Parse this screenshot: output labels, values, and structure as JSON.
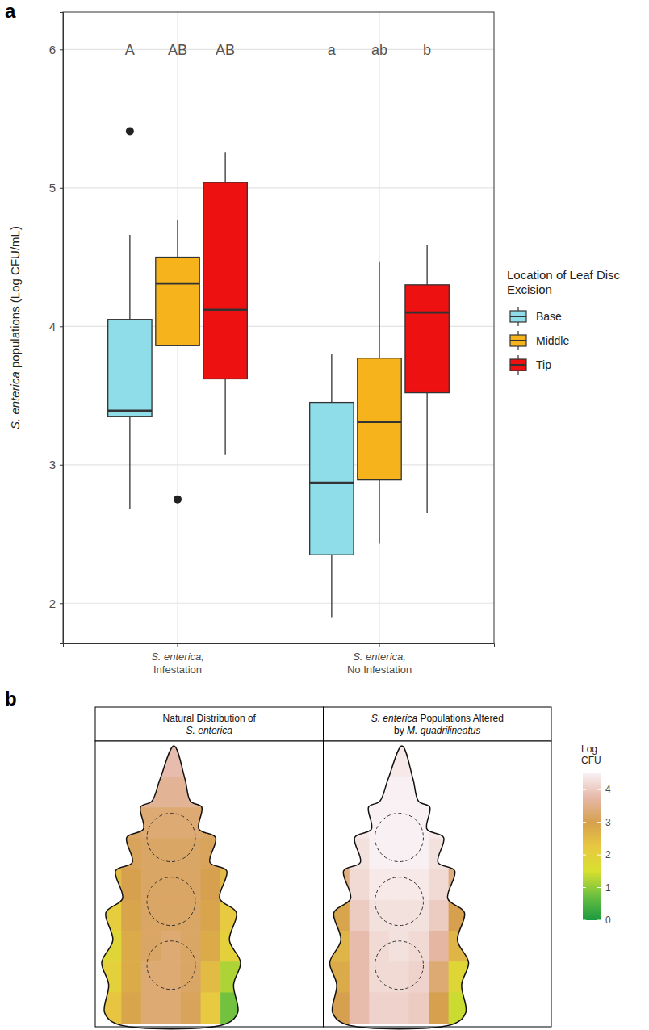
{
  "chart_data": [
    {
      "type": "box",
      "panel_label": "a",
      "y_label": "S. enterica populations (Log CFU/mL)",
      "categories": [
        "S. enterica, Infestation",
        "S. enterica, No Infestation"
      ],
      "ylim": [
        1.71,
        6.27
      ],
      "yticks": [
        2,
        3,
        4,
        5,
        6
      ],
      "grid": true,
      "legend": "right",
      "legend_title": "Location of Leaf Disc Excision",
      "series": [
        {
          "name": "Base",
          "color": "#8FDDE8",
          "whisker_low": [
            2.68,
            1.9
          ],
          "q1": [
            3.35,
            2.35
          ],
          "median": [
            3.39,
            2.87
          ],
          "q3": [
            4.05,
            3.45
          ],
          "whisker_high": [
            4.66,
            3.8
          ],
          "outliers": [
            [
              5.41
            ],
            []
          ],
          "letters": [
            "A",
            "a"
          ]
        },
        {
          "name": "Middle",
          "color": "#F6B31B",
          "whisker_low": [
            3.86,
            2.43
          ],
          "q1": [
            3.86,
            2.89
          ],
          "median": [
            4.31,
            3.31
          ],
          "q3": [
            4.5,
            3.77
          ],
          "whisker_high": [
            4.77,
            4.47
          ],
          "outliers": [
            [
              2.75
            ],
            []
          ],
          "letters": [
            "AB",
            "ab"
          ]
        },
        {
          "name": "Tip",
          "color": "#EE1111",
          "whisker_low": [
            3.07,
            2.65
          ],
          "q1": [
            3.62,
            3.52
          ],
          "median": [
            4.12,
            4.1
          ],
          "q3": [
            5.04,
            4.3
          ],
          "whisker_high": [
            5.26,
            4.59
          ],
          "outliers": [
            [],
            []
          ],
          "letters": [
            "AB",
            "b"
          ]
        }
      ]
    },
    {
      "type": "heatmap",
      "panel_label": "b",
      "panels": [
        {
          "title": "Natural Distribution of S. enterica",
          "z": [
            [
              3.6,
              3.7,
              3.8,
              3.8,
              3.8,
              3.7,
              3.6
            ],
            [
              3.4,
              3.5,
              3.6,
              3.6,
              3.6,
              3.5,
              3.4
            ],
            [
              3.0,
              3.2,
              3.3,
              3.3,
              3.3,
              3.2,
              3.0
            ],
            [
              2.8,
              3.1,
              3.2,
              3.2,
              3.2,
              3.1,
              2.8
            ],
            [
              2.5,
              3.0,
              3.2,
              3.2,
              3.2,
              3.0,
              2.5
            ],
            [
              2.1,
              2.9,
              3.2,
              3.2,
              3.2,
              2.9,
              2.2
            ],
            [
              1.8,
              2.8,
              3.2,
              3.3,
              3.2,
              2.8,
              2.0
            ],
            [
              2.0,
              2.8,
              3.3,
              3.3,
              3.2,
              2.5,
              1.2
            ],
            [
              2.3,
              2.9,
              3.3,
              3.3,
              3.1,
              2.2,
              0.8
            ]
          ]
        },
        {
          "title": "S. enterica Populations Altered by M. quadrilineatus",
          "z": [
            [
              4.2,
              4.3,
              4.4,
              4.4,
              4.4,
              4.3,
              4.2
            ],
            [
              4.3,
              4.4,
              4.5,
              4.5,
              4.5,
              4.4,
              4.3
            ],
            [
              4.1,
              4.4,
              4.5,
              4.5,
              4.5,
              4.4,
              4.1
            ],
            [
              3.8,
              4.3,
              4.5,
              4.5,
              4.5,
              4.3,
              3.8
            ],
            [
              3.4,
              4.2,
              4.4,
              4.4,
              4.4,
              4.2,
              3.4
            ],
            [
              2.9,
              4.0,
              4.3,
              4.3,
              4.3,
              4.0,
              3.0
            ],
            [
              2.6,
              3.8,
              4.2,
              4.3,
              4.2,
              3.7,
              2.6
            ],
            [
              2.8,
              3.8,
              4.2,
              4.2,
              4.1,
              3.3,
              1.8
            ],
            [
              3.0,
              3.8,
              4.1,
              4.1,
              4.0,
              3.0,
              1.4
            ]
          ]
        }
      ],
      "colorbar": {
        "title": "Log CFU",
        "range": [
          0,
          4.5
        ],
        "ticks": [
          0,
          1,
          2,
          3,
          4
        ],
        "colors": [
          "#1A9A40",
          "#6CC040",
          "#D8E030",
          "#E8C840",
          "#D6A04E",
          "#E6B8A8",
          "#F8F0F2"
        ]
      }
    }
  ]
}
